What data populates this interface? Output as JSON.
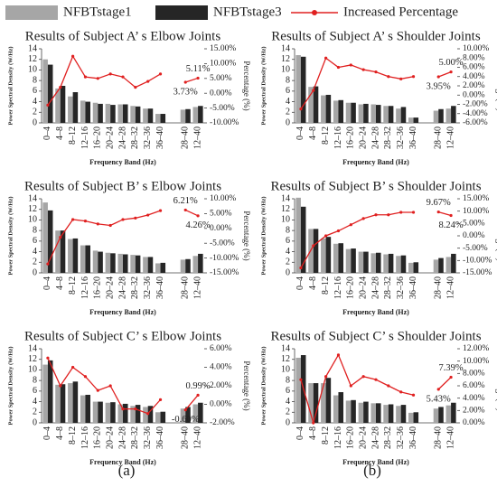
{
  "legend": [
    {
      "name": "NFBTstage1",
      "color": "#a6a6a6"
    },
    {
      "name": "NFBTstage3",
      "color": "#262626"
    },
    {
      "name": "Increased Percentage",
      "color": "#e02020"
    }
  ],
  "panel_labels": [
    "(a)",
    "(b)"
  ],
  "chart_data": [
    {
      "type": "combo",
      "title": "Results of Subject A’ s Elbow Joints",
      "xlabel": "Frequency Band (Hz)",
      "ylabel": "Power Spectral Density (W/Hz)",
      "y2label": "Percentage (%)",
      "categories": [
        "0–4",
        "4–8",
        "8–12",
        "12–16",
        "16–20",
        "20–24",
        "24–28",
        "28–32",
        "32–36",
        "36–40",
        null,
        "28–40",
        "12–40"
      ],
      "series": [
        {
          "values": [
            12,
            6.5,
            5,
            4.2,
            3.8,
            3.6,
            3.5,
            3.2,
            2.7,
            1.7,
            null,
            2.5,
            3.0
          ]
        },
        {
          "values": [
            11,
            7,
            5.8,
            4.0,
            3.6,
            3.4,
            3.5,
            3.1,
            2.7,
            1.7,
            null,
            2.6,
            3.2
          ]
        },
        {
          "axis": "y2",
          "values": [
            -4,
            2,
            12.5,
            5.5,
            5,
            6.5,
            5.5,
            2,
            4,
            6.5,
            null,
            3.73,
            5.11
          ],
          "value_labels": [
            null,
            null,
            null,
            null,
            null,
            null,
            null,
            null,
            null,
            null,
            null,
            "3.73%",
            "5.11%"
          ]
        }
      ],
      "ylim": [
        0,
        14
      ],
      "yticks": [
        0,
        2,
        4,
        6,
        8,
        10,
        12,
        14
      ],
      "y2lim": [
        -10,
        15
      ],
      "y2ticks": [
        {
          "value": -10,
          "label": "-10.00%"
        },
        {
          "value": -5,
          "label": "-5.00%"
        },
        {
          "value": 0,
          "label": "0.00%"
        },
        {
          "value": 5,
          "label": "5.00%"
        },
        {
          "value": 10,
          "label": "10.00%"
        },
        {
          "value": 15,
          "label": "15.00%"
        }
      ]
    },
    {
      "type": "combo",
      "title": "Results of Subject A’ s Shoulder Joints",
      "xlabel": "Frequency Band (Hz)",
      "ylabel": "Power Spectral Density (W/Hz)",
      "y2label": "Percentage (%)",
      "categories": [
        "0–4",
        "4–8",
        "8–12",
        "12–16",
        "16–20",
        "20–24",
        "24–28",
        "28–32",
        "32–36",
        "36–40",
        null,
        "28–40",
        "12–40"
      ],
      "series": [
        {
          "values": [
            12.8,
            6.8,
            5.2,
            4.2,
            3.8,
            3.5,
            3.5,
            3.2,
            2.7,
            1.0,
            null,
            2.3,
            2.7
          ]
        },
        {
          "values": [
            12.5,
            6.9,
            5.3,
            4.3,
            3.8,
            3.6,
            3.4,
            3.2,
            3.0,
            1.0,
            null,
            2.6,
            3.2
          ]
        },
        {
          "axis": "y2",
          "values": [
            -3,
            1,
            8,
            6,
            6.5,
            5.5,
            5,
            4,
            3.5,
            4,
            null,
            3.95,
            5.0
          ],
          "value_labels": [
            null,
            null,
            null,
            null,
            null,
            null,
            null,
            null,
            null,
            null,
            null,
            "3.95%",
            "5.00%"
          ]
        }
      ],
      "ylim": [
        0,
        14
      ],
      "yticks": [
        0,
        2,
        4,
        6,
        8,
        10,
        12,
        14
      ],
      "y2lim": [
        -6,
        10
      ],
      "y2ticks": [
        {
          "value": -6,
          "label": "-6.00%"
        },
        {
          "value": -4,
          "label": "-4.00%"
        },
        {
          "value": -2,
          "label": "-2.00%"
        },
        {
          "value": 0,
          "label": "0.00%"
        },
        {
          "value": 2,
          "label": "2.00%"
        },
        {
          "value": 4,
          "label": "4.00%"
        },
        {
          "value": 6,
          "label": "6.00%"
        },
        {
          "value": 8,
          "label": "8.00%"
        },
        {
          "value": 10,
          "label": "10.00%"
        }
      ]
    },
    {
      "type": "combo",
      "title": "Results of Subject B’ s Elbow Joints",
      "xlabel": "Frequency Band (Hz)",
      "ylabel": "Power Spectral Density (W/Hz)",
      "y2label": "Percentage (%)",
      "categories": [
        "0–4",
        "4–8",
        "8–12",
        "12–16",
        "16–20",
        "20–24",
        "24–28",
        "28–32",
        "32–36",
        "36–40",
        null,
        "28–40",
        "12–40"
      ],
      "series": [
        {
          "values": [
            13.3,
            8,
            6.4,
            5.2,
            4.2,
            3.8,
            3.6,
            3.4,
            3.0,
            1.8,
            null,
            2.5,
            3.2
          ]
        },
        {
          "values": [
            11.8,
            8,
            6.5,
            5.2,
            4.0,
            3.7,
            3.5,
            3.3,
            3.0,
            1.9,
            null,
            2.6,
            3.6
          ]
        },
        {
          "axis": "y2",
          "values": [
            -12,
            -3,
            3,
            2.5,
            1.5,
            1,
            3,
            3.5,
            4.5,
            6,
            null,
            6.21,
            4.26
          ],
          "value_labels": [
            null,
            null,
            null,
            null,
            null,
            null,
            null,
            null,
            null,
            null,
            null,
            "6.21%",
            "4.26%"
          ]
        }
      ],
      "ylim": [
        0,
        14
      ],
      "yticks": [
        0,
        2,
        4,
        6,
        8,
        10,
        12,
        14
      ],
      "y2lim": [
        -15,
        10
      ],
      "y2ticks": [
        {
          "value": -15,
          "label": "-15.00%"
        },
        {
          "value": -10,
          "label": "-10.00%"
        },
        {
          "value": -5,
          "label": "-5.00%"
        },
        {
          "value": 0,
          "label": "0.00%"
        },
        {
          "value": 5,
          "label": "5.00%"
        },
        {
          "value": 10,
          "label": "10.00%"
        }
      ]
    },
    {
      "type": "combo",
      "title": "Results of Subject B’ s Shoulder Joints",
      "xlabel": "Frequency Band (Hz)",
      "ylabel": "Power Spectral Density (W/Hz)",
      "y2label": "Percentage (%)",
      "categories": [
        "0–4",
        "4–8",
        "8–12",
        "12–16",
        "16–20",
        "20–24",
        "24–28",
        "28–32",
        "32–36",
        "36–40",
        null,
        "28–40",
        "12–40"
      ],
      "series": [
        {
          "values": [
            14.2,
            8.3,
            6.5,
            5.5,
            4.5,
            4.0,
            3.7,
            3.5,
            3.2,
            1.9,
            null,
            2.5,
            3.0
          ]
        },
        {
          "values": [
            12.5,
            8.3,
            6.8,
            5.6,
            4.6,
            4.0,
            3.8,
            3.6,
            3.3,
            2.0,
            null,
            2.8,
            3.6
          ]
        },
        {
          "axis": "y2",
          "values": [
            -13,
            -4,
            0,
            2,
            4.5,
            7,
            8.5,
            8.5,
            9.5,
            9.5,
            null,
            9.67,
            8.24
          ],
          "value_labels": [
            null,
            null,
            null,
            null,
            null,
            null,
            null,
            null,
            null,
            null,
            null,
            "9.67%",
            "8.24%"
          ]
        }
      ],
      "ylim": [
        0,
        14
      ],
      "yticks": [
        0,
        2,
        4,
        6,
        8,
        10,
        12,
        14
      ],
      "y2lim": [
        -15,
        15
      ],
      "y2ticks": [
        {
          "value": -15,
          "label": "-15.00%"
        },
        {
          "value": -10,
          "label": "-10.00%"
        },
        {
          "value": -5,
          "label": "-5.00%"
        },
        {
          "value": 0,
          "label": "0.00%"
        },
        {
          "value": 5,
          "label": "5.00%"
        },
        {
          "value": 10,
          "label": "10.00%"
        },
        {
          "value": 15,
          "label": "15.00%"
        }
      ]
    },
    {
      "type": "combo",
      "title": "Results of Subject C’ s Elbow Joints",
      "xlabel": "Frequency Band (Hz)",
      "ylabel": "Power Spectral Density (W/Hz)",
      "y2label": "Percentage (%)",
      "categories": [
        "0–4",
        "4–8",
        "8–12",
        "12–16",
        "16–20",
        "20–24",
        "24–28",
        "28–32",
        "32–36",
        "36–40",
        null,
        "28–40",
        "12–40"
      ],
      "series": [
        {
          "values": [
            11,
            7.2,
            7.5,
            5.2,
            4.0,
            3.8,
            3.5,
            3.2,
            3.0,
            2.0,
            null,
            2.7,
            3.5
          ]
        },
        {
          "values": [
            11.8,
            7.3,
            7.8,
            5.3,
            4.0,
            3.9,
            3.6,
            3.4,
            3.2,
            2.1,
            null,
            3.0,
            3.8
          ]
        },
        {
          "axis": "y2",
          "values": [
            5,
            2,
            4,
            3,
            1.5,
            2,
            -0.5,
            -0.5,
            -1,
            0.5,
            null,
            -0.6,
            0.99
          ],
          "value_labels": [
            null,
            null,
            null,
            null,
            null,
            null,
            null,
            null,
            null,
            null,
            null,
            "-0.60%",
            "0.99%"
          ]
        }
      ],
      "ylim": [
        0,
        14
      ],
      "yticks": [
        0,
        2,
        4,
        6,
        8,
        10,
        12,
        14
      ],
      "y2lim": [
        -2,
        6
      ],
      "y2ticks": [
        {
          "value": -2,
          "label": "-2.00%"
        },
        {
          "value": 0,
          "label": "0.00%"
        },
        {
          "value": 2,
          "label": "2.00%"
        },
        {
          "value": 4,
          "label": "4.00%"
        },
        {
          "value": 6,
          "label": "6.00%"
        }
      ]
    },
    {
      "type": "combo",
      "title": "Results of Subject C’ s Shoulder Joints",
      "xlabel": "Frequency Band (Hz)",
      "ylabel": "Power Spectral Density (W/Hz)",
      "y2label": "Percentage (%)",
      "categories": [
        "0–4",
        "4–8",
        "8–12",
        "12–16",
        "16–20",
        "20–24",
        "24–28",
        "28–32",
        "32–36",
        "36–40",
        null,
        "28–40",
        "12–40"
      ],
      "series": [
        {
          "values": [
            12.3,
            7.5,
            7.5,
            5.2,
            4.2,
            3.8,
            3.7,
            3.4,
            3.2,
            1.9,
            null,
            2.7,
            3.3
          ]
        },
        {
          "values": [
            12.8,
            7.5,
            8.5,
            5.8,
            4.3,
            4.0,
            3.7,
            3.5,
            3.4,
            2.0,
            null,
            3.0,
            3.8
          ]
        },
        {
          "axis": "y2",
          "values": [
            7,
            0,
            7.5,
            11,
            6,
            7.5,
            7,
            6,
            5,
            4.5,
            null,
            5.43,
            7.39
          ],
          "value_labels": [
            null,
            null,
            null,
            null,
            null,
            null,
            null,
            null,
            null,
            null,
            null,
            "5.43%",
            "7.39%"
          ]
        }
      ],
      "ylim": [
        0,
        14
      ],
      "yticks": [
        0,
        2,
        4,
        6,
        8,
        10,
        12,
        14
      ],
      "y2lim": [
        0,
        12
      ],
      "y2ticks": [
        {
          "value": 0,
          "label": "0.00%"
        },
        {
          "value": 2,
          "label": "2.00%"
        },
        {
          "value": 4,
          "label": "4.00%"
        },
        {
          "value": 6,
          "label": "6.00%"
        },
        {
          "value": 8,
          "label": "8.00%"
        },
        {
          "value": 10,
          "label": "10.00%"
        },
        {
          "value": 12,
          "label": "12.00%"
        }
      ]
    }
  ]
}
